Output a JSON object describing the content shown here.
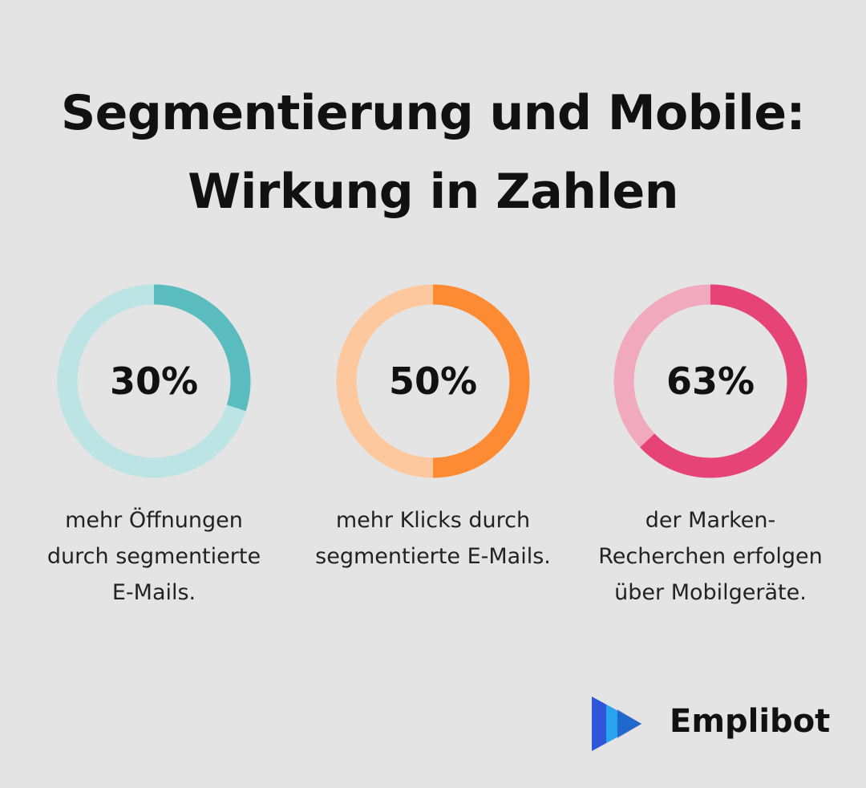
{
  "title": "Segmentierung und Mobile: Wirkung in Zahlen",
  "logo": "Emplibot",
  "chart_data": [
    {
      "type": "donut",
      "values": [
        30
      ],
      "value_labels": [
        "30%"
      ],
      "caption": "mehr Öffnungen durch segmentierte E-Mails.",
      "color": "#5bbcbf",
      "track_color": "#bde4e5"
    },
    {
      "type": "donut",
      "values": [
        50
      ],
      "value_labels": [
        "50%"
      ],
      "caption": "mehr Klicks durch segmentierte E-Mails.",
      "color": "#fd8b34",
      "track_color": "#fdc89e"
    },
    {
      "type": "donut",
      "values": [
        63
      ],
      "value_labels": [
        "63%"
      ],
      "caption": "der Marken-Recherchen erfolgen über Mobilgeräte.",
      "color": "#e64477",
      "track_color": "#f1a9c0"
    }
  ]
}
